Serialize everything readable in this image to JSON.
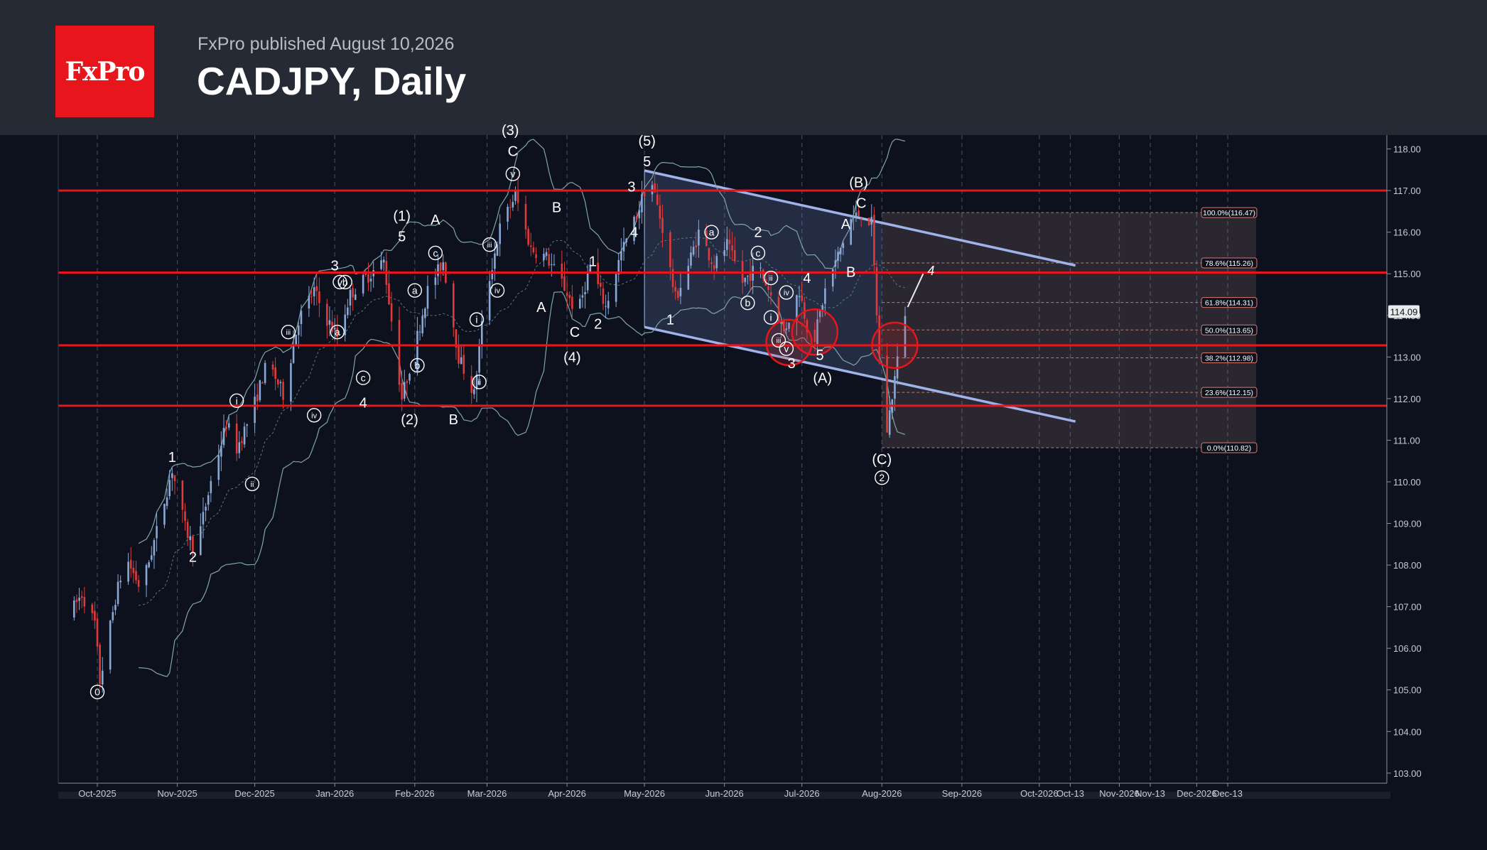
{
  "header": {
    "logo_text": "FxPro",
    "published": "FxPro published August 10,2026",
    "title": "CADJPY, Daily"
  },
  "chart_data": {
    "type": "candlestick",
    "symbol": "CADJPY",
    "timeframe": "Daily",
    "ylim": [
      102.7,
      118.3
    ],
    "y_ticks": [
      "103.00",
      "104.00",
      "105.00",
      "106.00",
      "107.00",
      "108.00",
      "109.00",
      "110.00",
      "111.00",
      "112.00",
      "113.00",
      "114.00",
      "115.00",
      "116.00",
      "117.00",
      "118.00"
    ],
    "x_ticks": [
      "Oct-2025",
      "Nov-2025",
      "Dec-2025",
      "Jan-2026",
      "Feb-2026",
      "Mar-2026",
      "Apr-2026",
      "May-2026",
      "Jun-2026",
      "Jul-2026",
      "Aug-2026",
      "Sep-2026",
      "Oct-2026",
      "Oct-13",
      "Nov-2026",
      "Nov-13",
      "Dec-2026",
      "Dec-13"
    ],
    "current_price": "114.09",
    "horizontal_levels": [
      117.0,
      115.03,
      113.28,
      111.83
    ],
    "fibonacci": {
      "range": [
        110.82,
        116.47
      ],
      "levels": [
        {
          "label": "100.0%(116.47)",
          "value": 116.47
        },
        {
          "label": "78.6%(115.26)",
          "value": 115.26
        },
        {
          "label": "61.8%(114.31)",
          "value": 114.31
        },
        {
          "label": "50.0%(113.65)",
          "value": 113.65
        },
        {
          "label": "38.2%(112.98)",
          "value": 112.98
        },
        {
          "label": "23.6%(112.15)",
          "value": 112.15
        },
        {
          "label": "0.0%(110.82)",
          "value": 110.82
        }
      ]
    },
    "path": [
      [
        "2025-09-20",
        106.8
      ],
      [
        "2025-09-25",
        107.3
      ],
      [
        "2025-09-30",
        106.6
      ],
      [
        "2025-10-02",
        105.2
      ],
      [
        "2025-10-08",
        107.2
      ],
      [
        "2025-10-12",
        108.2
      ],
      [
        "2025-10-18",
        107.4
      ],
      [
        "2025-10-24",
        108.8
      ],
      [
        "2025-10-30",
        110.3
      ],
      [
        "2025-11-04",
        108.9
      ],
      [
        "2025-11-08",
        108.3
      ],
      [
        "2025-11-14",
        110.0
      ],
      [
        "2025-11-20",
        111.4
      ],
      [
        "2025-11-24",
        110.8
      ],
      [
        "2025-11-30",
        111.7
      ],
      [
        "2025-12-06",
        112.9
      ],
      [
        "2025-12-12",
        112.1
      ],
      [
        "2025-12-18",
        113.9
      ],
      [
        "2025-12-24",
        114.6
      ],
      [
        "2025-12-28",
        114.0
      ],
      [
        "2026-01-02",
        113.5
      ],
      [
        "2026-01-07",
        114.5
      ],
      [
        "2026-01-13",
        114.9
      ],
      [
        "2026-01-20",
        115.3
      ],
      [
        "2026-01-27",
        112.0
      ],
      [
        "2026-02-02",
        113.5
      ],
      [
        "2026-02-06",
        114.6
      ],
      [
        "2026-02-12",
        115.3
      ],
      [
        "2026-02-18",
        113.0
      ],
      [
        "2026-02-24",
        112.1
      ],
      [
        "2026-02-28",
        114.3
      ],
      [
        "2026-03-06",
        116.1
      ],
      [
        "2026-03-12",
        116.9
      ],
      [
        "2026-03-18",
        115.6
      ],
      [
        "2026-03-24",
        115.4
      ],
      [
        "2026-03-30",
        114.8
      ],
      [
        "2026-04-05",
        114.0
      ],
      [
        "2026-04-10",
        115.2
      ],
      [
        "2026-04-16",
        114.2
      ],
      [
        "2026-04-22",
        115.5
      ],
      [
        "2026-04-28",
        116.4
      ],
      [
        "2026-05-03",
        117.4
      ],
      [
        "2026-05-08",
        116.1
      ],
      [
        "2026-05-13",
        114.4
      ],
      [
        "2026-05-18",
        115.2
      ],
      [
        "2026-05-22",
        116.0
      ],
      [
        "2026-05-28",
        115.2
      ],
      [
        "2026-06-02",
        115.7
      ],
      [
        "2026-06-08",
        114.8
      ],
      [
        "2026-06-14",
        115.2
      ],
      [
        "2026-06-19",
        114.5
      ],
      [
        "2026-06-24",
        113.6
      ],
      [
        "2026-06-30",
        114.6
      ],
      [
        "2026-07-05",
        113.2
      ],
      [
        "2026-07-10",
        114.6
      ],
      [
        "2026-07-16",
        115.6
      ],
      [
        "2026-07-20",
        116.3
      ],
      [
        "2026-07-24",
        116.47
      ],
      [
        "2026-07-28",
        116.2
      ],
      [
        "2026-08-02",
        110.82
      ],
      [
        "2026-08-06",
        112.5
      ],
      [
        "2026-08-10",
        114.09
      ]
    ],
    "wave_labels": [
      {
        "text": "0",
        "date": "2025-10-01",
        "y": 104.95,
        "circled": true
      },
      {
        "text": "1",
        "date": "2025-10-30",
        "y": 110.6
      },
      {
        "text": "2",
        "date": "2025-11-07",
        "y": 108.2
      },
      {
        "text": "i",
        "date": "2025-11-24",
        "y": 111.95,
        "circled": true
      },
      {
        "text": "ii",
        "date": "2025-11-30",
        "y": 109.95,
        "circled": true
      },
      {
        "text": "iii",
        "date": "2025-12-14",
        "y": 113.6,
        "circled": true
      },
      {
        "text": "iv",
        "date": "2025-12-24",
        "y": 111.6,
        "circled": true
      },
      {
        "text": "3",
        "date": "2026-01-01",
        "y": 115.2
      },
      {
        "text": "v",
        "date": "2026-01-03",
        "y": 114.8,
        "circled": true
      },
      {
        "text": "b",
        "date": "2026-01-05",
        "y": 114.8,
        "circled": true
      },
      {
        "text": "a",
        "date": "2026-01-02",
        "y": 113.6,
        "circled": true
      },
      {
        "text": "c",
        "date": "2026-01-12",
        "y": 112.5,
        "circled": true
      },
      {
        "text": "4",
        "date": "2026-01-12",
        "y": 111.9
      },
      {
        "text": "(1)",
        "date": "2026-01-27",
        "y": 116.4
      },
      {
        "text": "5",
        "date": "2026-01-27",
        "y": 115.9
      },
      {
        "text": "a",
        "date": "2026-02-01",
        "y": 114.6,
        "circled": true
      },
      {
        "text": "b",
        "date": "2026-02-02",
        "y": 112.8,
        "circled": true
      },
      {
        "text": "(2)",
        "date": "2026-01-30",
        "y": 111.5
      },
      {
        "text": "A",
        "date": "2026-02-09",
        "y": 116.3
      },
      {
        "text": "c",
        "date": "2026-02-09",
        "y": 115.5,
        "circled": true
      },
      {
        "text": "B",
        "date": "2026-02-16",
        "y": 111.5
      },
      {
        "text": "i",
        "date": "2026-02-25",
        "y": 113.9,
        "circled": true
      },
      {
        "text": "ii",
        "date": "2026-02-26",
        "y": 112.4,
        "circled": true
      },
      {
        "text": "iii",
        "date": "2026-03-02",
        "y": 115.7,
        "circled": true
      },
      {
        "text": "iv",
        "date": "2026-03-05",
        "y": 114.6,
        "circled": true
      },
      {
        "text": "(3)",
        "date": "2026-03-10",
        "y": 118.45
      },
      {
        "text": "C",
        "date": "2026-03-11",
        "y": 117.95
      },
      {
        "text": "v",
        "date": "2026-03-11",
        "y": 117.4,
        "circled": true
      },
      {
        "text": "B",
        "date": "2026-03-28",
        "y": 116.6
      },
      {
        "text": "A",
        "date": "2026-03-22",
        "y": 114.2
      },
      {
        "text": "1",
        "date": "2026-04-11",
        "y": 115.3
      },
      {
        "text": "C",
        "date": "2026-04-04",
        "y": 113.6
      },
      {
        "text": "2",
        "date": "2026-04-13",
        "y": 113.8
      },
      {
        "text": "(4)",
        "date": "2026-04-03",
        "y": 113.0
      },
      {
        "text": "3",
        "date": "2026-04-26",
        "y": 117.1
      },
      {
        "text": "4",
        "date": "2026-04-27",
        "y": 116.0
      },
      {
        "text": "(5)",
        "date": "2026-05-02",
        "y": 118.2
      },
      {
        "text": "5",
        "date": "2026-05-02",
        "y": 117.7
      },
      {
        "text": "1",
        "date": "2026-05-11",
        "y": 113.9
      },
      {
        "text": "a",
        "date": "2026-05-27",
        "y": 116.0,
        "circled": true
      },
      {
        "text": "2",
        "date": "2026-06-14",
        "y": 116.0
      },
      {
        "text": "c",
        "date": "2026-06-14",
        "y": 115.5,
        "circled": true
      },
      {
        "text": "ii",
        "date": "2026-06-19",
        "y": 114.9,
        "circled": true
      },
      {
        "text": "b",
        "date": "2026-06-10",
        "y": 114.3,
        "circled": true
      },
      {
        "text": "i",
        "date": "2026-06-19",
        "y": 113.95,
        "circled": true
      },
      {
        "text": "iv",
        "date": "2026-06-25",
        "y": 114.55,
        "circled": true
      },
      {
        "text": "iii",
        "date": "2026-06-22",
        "y": 113.4,
        "circled": true
      },
      {
        "text": "v",
        "date": "2026-06-25",
        "y": 113.2,
        "circled": true
      },
      {
        "text": "4",
        "date": "2026-07-03",
        "y": 114.9
      },
      {
        "text": "3",
        "date": "2026-06-27",
        "y": 112.85
      },
      {
        "text": "5",
        "date": "2026-07-08",
        "y": 113.05
      },
      {
        "text": "(A)",
        "date": "2026-07-09",
        "y": 112.5
      },
      {
        "text": "A",
        "date": "2026-07-18",
        "y": 116.2
      },
      {
        "text": "B",
        "date": "2026-07-20",
        "y": 115.05
      },
      {
        "text": "(B)",
        "date": "2026-07-23",
        "y": 117.2
      },
      {
        "text": "C",
        "date": "2026-07-24",
        "y": 116.7
      },
      {
        "text": "(C)",
        "date": "2026-08-01",
        "y": 110.55
      },
      {
        "text": "2",
        "date": "2026-08-01",
        "y": 110.1,
        "circled": true
      }
    ],
    "projection_label": "4",
    "highlight_circles": [
      {
        "date": "2026-06-26",
        "y": 113.35
      },
      {
        "date": "2026-07-06",
        "y": 113.6
      },
      {
        "date": "2026-08-06",
        "y": 113.28
      }
    ]
  }
}
